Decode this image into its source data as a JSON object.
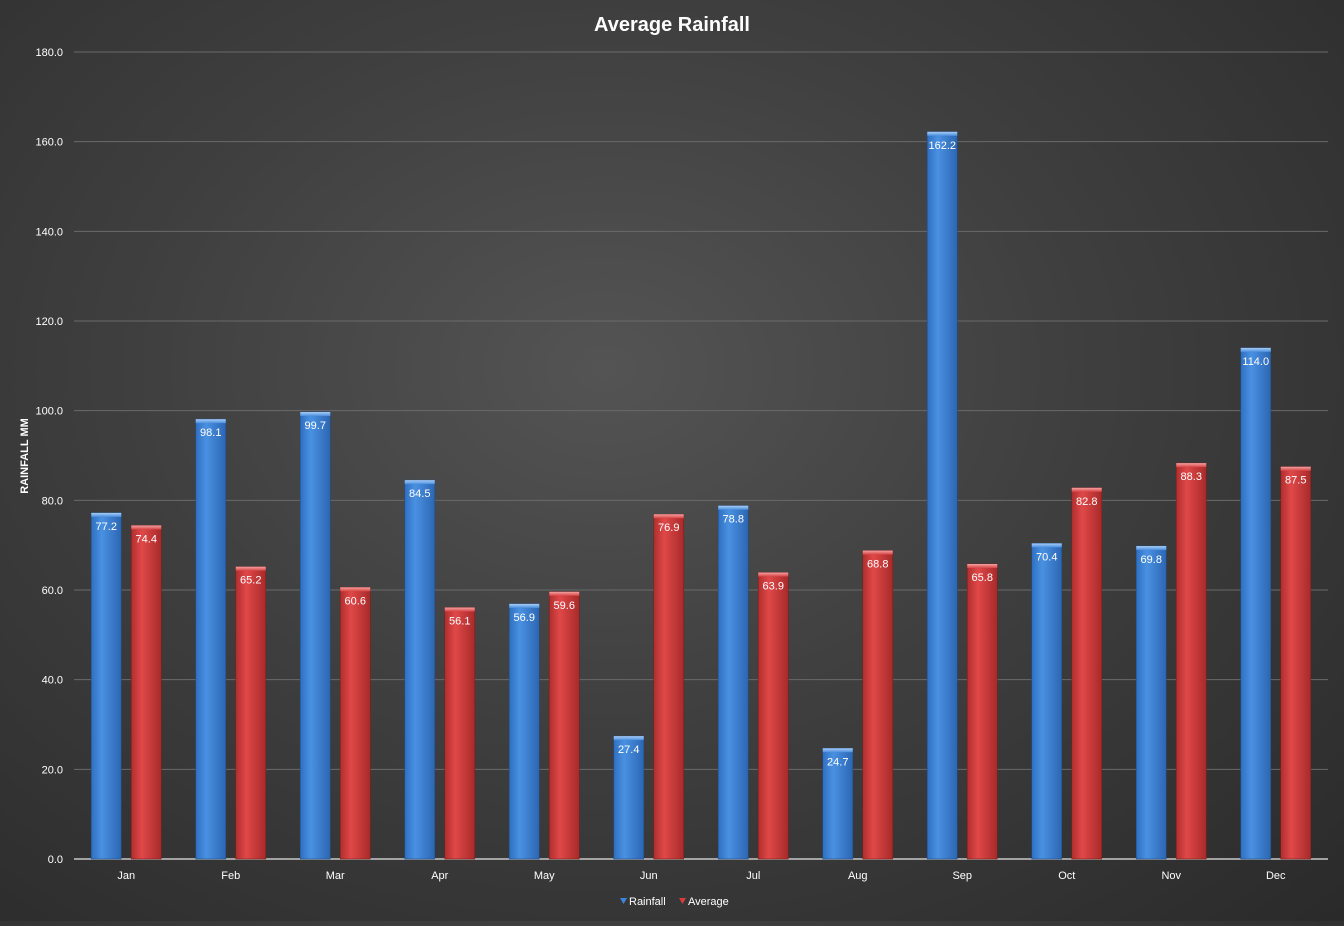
{
  "chart_data": {
    "type": "bar",
    "title": "Average Rainfall",
    "xlabel": "",
    "ylabel": "RAINFALL MM",
    "ylim": [
      0,
      180
    ],
    "ytick_step": 20,
    "ytick_format_decimals": 1,
    "grid": true,
    "legend_position": "bottom",
    "categories": [
      "Jan",
      "Feb",
      "Mar",
      "Apr",
      "May",
      "Jun",
      "Jul",
      "Aug",
      "Sep",
      "Oct",
      "Nov",
      "Dec"
    ],
    "series": [
      {
        "name": "Rainfall",
        "color": "#3d85d8",
        "values": [
          77.2,
          98.1,
          99.7,
          84.5,
          56.9,
          27.4,
          78.8,
          24.7,
          162.2,
          70.4,
          69.8,
          114.0
        ]
      },
      {
        "name": "Average",
        "color": "#d43d3d",
        "values": [
          74.4,
          65.2,
          60.6,
          56.1,
          59.6,
          76.9,
          63.9,
          68.8,
          65.8,
          82.8,
          88.3,
          87.5
        ]
      }
    ]
  }
}
